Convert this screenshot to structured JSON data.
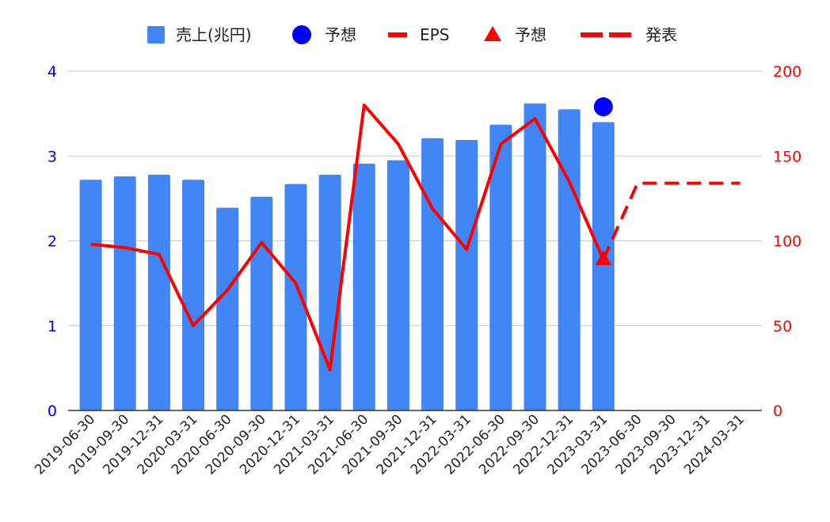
{
  "chart_data": {
    "type": "bar",
    "categories": [
      "2019-06-30",
      "2019-09-30",
      "2019-12-31",
      "2020-03-31",
      "2020-06-30",
      "2020-09-30",
      "2020-12-31",
      "2021-03-31",
      "2021-06-30",
      "2021-09-30",
      "2021-12-31",
      "2022-03-31",
      "2022-06-30",
      "2022-09-30",
      "2022-12-31",
      "2023-03-31",
      "2023-06-30",
      "2023-09-30",
      "2023-12-31",
      "2024-03-31"
    ],
    "legend": {
      "position": "top",
      "items": [
        {
          "label": "売上(兆円)",
          "marker": "square",
          "color": "#4285f4"
        },
        {
          "label": "予想",
          "marker": "circle",
          "color": "#0000ff"
        },
        {
          "label": "EPS",
          "marker": "line",
          "color": "#ff0000"
        },
        {
          "label": "予想",
          "marker": "triangle",
          "color": "#ff0000"
        },
        {
          "label": "発表",
          "marker": "dash",
          "color": "#ff0000"
        }
      ]
    },
    "y_left": {
      "range": [
        0,
        4
      ],
      "ticks": [
        "0",
        "1",
        "2",
        "3",
        "4"
      ],
      "color": "#0000ff"
    },
    "y_right": {
      "range": [
        0,
        200
      ],
      "ticks": [
        "0",
        "50",
        "100",
        "150",
        "200"
      ],
      "color": "#ff0000"
    },
    "grid": true,
    "series": [
      {
        "name": "売上(兆円)",
        "type": "bar",
        "axis": "left",
        "color": "#4285f4",
        "values": [
          2.72,
          2.76,
          2.78,
          2.72,
          2.39,
          2.52,
          2.67,
          2.78,
          2.91,
          2.95,
          3.21,
          3.19,
          3.37,
          3.62,
          3.55,
          3.4,
          null,
          null,
          null,
          null
        ]
      },
      {
        "name": "予想",
        "type": "scatter",
        "marker": "circle",
        "axis": "left",
        "color": "#0000ff",
        "points": [
          {
            "x": "2023-03-31",
            "y": 3.58
          }
        ]
      },
      {
        "name": "EPS",
        "type": "line",
        "axis": "right",
        "color": "#ff0000",
        "values": [
          98,
          96,
          92,
          50,
          71,
          99,
          75,
          24,
          180,
          157,
          119,
          95,
          157,
          172,
          135,
          89,
          null,
          null,
          null,
          null
        ]
      },
      {
        "name": "予想",
        "type": "scatter",
        "marker": "triangle",
        "axis": "right",
        "color": "#ff0000",
        "points": [
          {
            "x": "2023-03-31",
            "y": 89
          }
        ]
      },
      {
        "name": "発表",
        "type": "line",
        "style": "dashed",
        "axis": "right",
        "color": "#ff0000",
        "points": [
          {
            "x": "2023-03-31",
            "y": 89
          },
          {
            "x": "2023-06-30",
            "y": 134
          },
          {
            "x": "2023-09-30",
            "y": 134
          },
          {
            "x": "2023-12-31",
            "y": 134
          },
          {
            "x": "2024-03-31",
            "y": 134
          }
        ]
      }
    ]
  }
}
